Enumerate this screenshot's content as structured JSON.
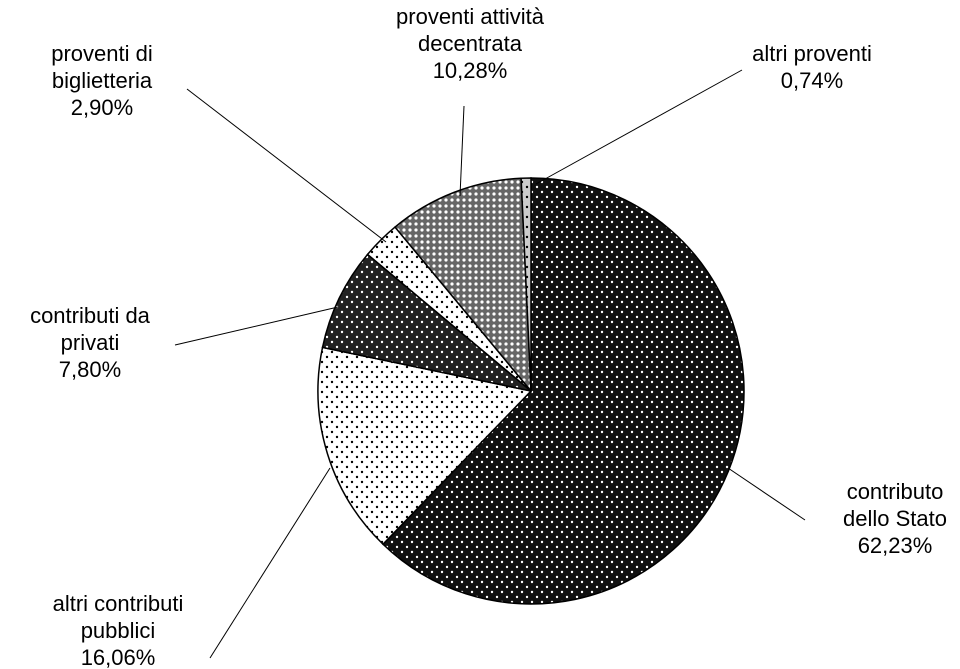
{
  "chart_data": {
    "type": "pie",
    "categories": [
      "contributo dello Stato",
      "altri contributi pubblici",
      "contributi da privati",
      "proventi di biglietteria",
      "proventi attività decentrata",
      "altri proventi"
    ],
    "values": [
      62.23,
      16.06,
      7.8,
      2.9,
      10.28,
      0.74
    ],
    "value_labels": [
      "62,23%",
      "16,06%",
      "7,80%",
      "2,90%",
      "10,28%",
      "0,74%"
    ],
    "colors": [
      "#111111",
      "#ffffff",
      "#222222",
      "#ffffff",
      "#666666",
      "#cccccc"
    ]
  }
}
